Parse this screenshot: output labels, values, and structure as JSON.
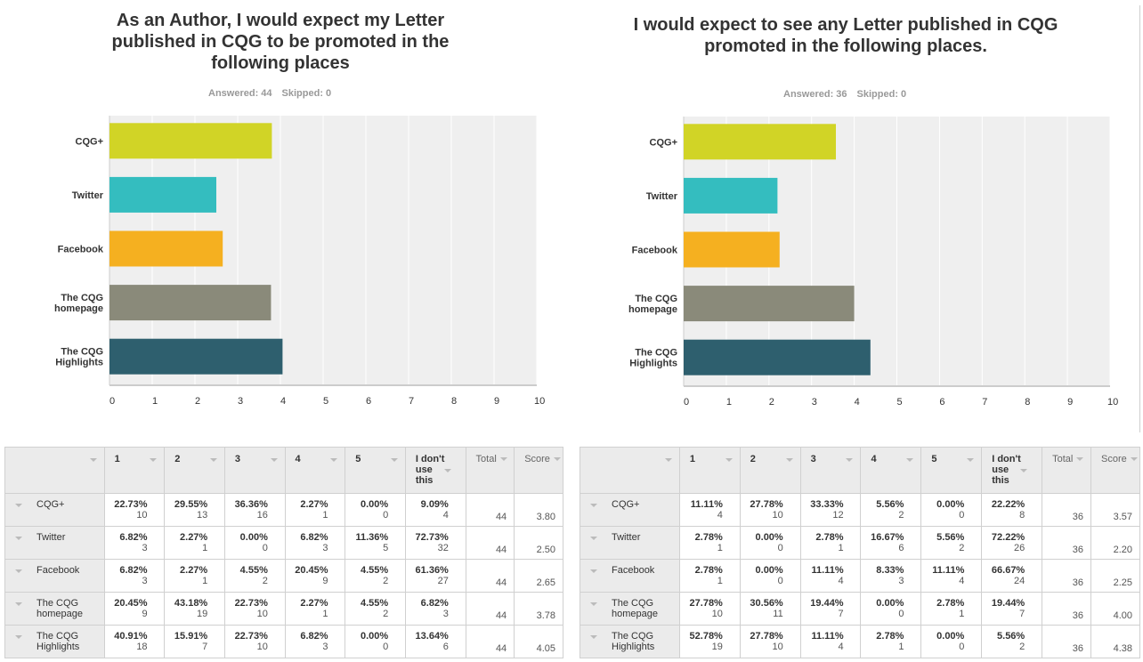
{
  "colors": {
    "series": [
      "#d1d426",
      "#34bdbf",
      "#f5b020",
      "#8a8a7a",
      "#2e5f6e"
    ],
    "plot_bg": "#efefef",
    "grid": "#ffffff",
    "axis": "#cccccc"
  },
  "panels": [
    {
      "title": "As an Author, I would expect my Letter published in CQG to be promoted in the following places",
      "answered_label": "Answered: 44",
      "skipped_label": "Skipped: 0",
      "table": {
        "headers": [
          "",
          "1",
          "2",
          "3",
          "4",
          "5",
          "I don't use this",
          "Total",
          "Score"
        ],
        "rows": [
          {
            "label": "CQG+",
            "cells": [
              [
                "22.73%",
                "10"
              ],
              [
                "29.55%",
                "13"
              ],
              [
                "36.36%",
                "16"
              ],
              [
                "2.27%",
                "1"
              ],
              [
                "0.00%",
                "0"
              ],
              [
                "9.09%",
                "4"
              ]
            ],
            "total": "44",
            "score": "3.80"
          },
          {
            "label": "Twitter",
            "cells": [
              [
                "6.82%",
                "3"
              ],
              [
                "2.27%",
                "1"
              ],
              [
                "0.00%",
                "0"
              ],
              [
                "6.82%",
                "3"
              ],
              [
                "11.36%",
                "5"
              ],
              [
                "72.73%",
                "32"
              ]
            ],
            "total": "44",
            "score": "2.50"
          },
          {
            "label": "Facebook",
            "cells": [
              [
                "6.82%",
                "3"
              ],
              [
                "2.27%",
                "1"
              ],
              [
                "4.55%",
                "2"
              ],
              [
                "20.45%",
                "9"
              ],
              [
                "4.55%",
                "2"
              ],
              [
                "61.36%",
                "27"
              ]
            ],
            "total": "44",
            "score": "2.65"
          },
          {
            "label": "The CQG homepage",
            "cells": [
              [
                "20.45%",
                "9"
              ],
              [
                "43.18%",
                "19"
              ],
              [
                "22.73%",
                "10"
              ],
              [
                "2.27%",
                "1"
              ],
              [
                "4.55%",
                "2"
              ],
              [
                "6.82%",
                "3"
              ]
            ],
            "total": "44",
            "score": "3.78"
          },
          {
            "label": "The CQG Highlights",
            "cells": [
              [
                "40.91%",
                "18"
              ],
              [
                "15.91%",
                "7"
              ],
              [
                "22.73%",
                "10"
              ],
              [
                "6.82%",
                "3"
              ],
              [
                "0.00%",
                "0"
              ],
              [
                "13.64%",
                "6"
              ]
            ],
            "total": "44",
            "score": "4.05"
          }
        ]
      }
    },
    {
      "title": "I would expect to see any Letter published in CQG promoted in the following places.",
      "answered_label": "Answered: 36",
      "skipped_label": "Skipped: 0",
      "table": {
        "headers": [
          "",
          "1",
          "2",
          "3",
          "4",
          "5",
          "I don't use this",
          "Total",
          "Score"
        ],
        "rows": [
          {
            "label": "CQG+",
            "cells": [
              [
                "11.11%",
                "4"
              ],
              [
                "27.78%",
                "10"
              ],
              [
                "33.33%",
                "12"
              ],
              [
                "5.56%",
                "2"
              ],
              [
                "0.00%",
                "0"
              ],
              [
                "22.22%",
                "8"
              ]
            ],
            "total": "36",
            "score": "3.57"
          },
          {
            "label": "Twitter",
            "cells": [
              [
                "2.78%",
                "1"
              ],
              [
                "0.00%",
                "0"
              ],
              [
                "2.78%",
                "1"
              ],
              [
                "16.67%",
                "6"
              ],
              [
                "5.56%",
                "2"
              ],
              [
                "72.22%",
                "26"
              ]
            ],
            "total": "36",
            "score": "2.20"
          },
          {
            "label": "Facebook",
            "cells": [
              [
                "2.78%",
                "1"
              ],
              [
                "0.00%",
                "0"
              ],
              [
                "11.11%",
                "4"
              ],
              [
                "8.33%",
                "3"
              ],
              [
                "11.11%",
                "4"
              ],
              [
                "66.67%",
                "24"
              ]
            ],
            "total": "36",
            "score": "2.25"
          },
          {
            "label": "The CQG homepage",
            "cells": [
              [
                "27.78%",
                "10"
              ],
              [
                "30.56%",
                "11"
              ],
              [
                "19.44%",
                "7"
              ],
              [
                "0.00%",
                "0"
              ],
              [
                "2.78%",
                "1"
              ],
              [
                "19.44%",
                "7"
              ]
            ],
            "total": "36",
            "score": "4.00"
          },
          {
            "label": "The CQG Highlights",
            "cells": [
              [
                "52.78%",
                "19"
              ],
              [
                "27.78%",
                "10"
              ],
              [
                "11.11%",
                "4"
              ],
              [
                "2.78%",
                "1"
              ],
              [
                "0.00%",
                "0"
              ],
              [
                "5.56%",
                "2"
              ]
            ],
            "total": "36",
            "score": "4.38"
          }
        ]
      }
    }
  ],
  "chart_data": [
    {
      "type": "bar",
      "orientation": "horizontal",
      "title": "As an Author, I would expect my Letter published in CQG to be promoted in the following places",
      "categories": [
        "CQG+",
        "Twitter",
        "Facebook",
        "The CQG homepage",
        "The CQG Highlights"
      ],
      "category_lines": [
        [
          "CQG+"
        ],
        [
          "Twitter"
        ],
        [
          "Facebook"
        ],
        [
          "The CQG",
          "homepage"
        ],
        [
          "The CQG",
          "Highlights"
        ]
      ],
      "values": [
        3.8,
        2.5,
        2.65,
        3.78,
        4.05
      ],
      "xlabel": "",
      "ylabel": "",
      "xlim": [
        0,
        10
      ],
      "xticks": [
        "0",
        "1",
        "2",
        "3",
        "4",
        "5",
        "6",
        "7",
        "8",
        "9",
        "10"
      ],
      "grid": true,
      "legend": "none"
    },
    {
      "type": "bar",
      "orientation": "horizontal",
      "title": "I would expect to see any Letter published in CQG promoted in the following places.",
      "categories": [
        "CQG+",
        "Twitter",
        "Facebook",
        "The CQG homepage",
        "The CQG Highlights"
      ],
      "category_lines": [
        [
          "CQG+"
        ],
        [
          "Twitter"
        ],
        [
          "Facebook"
        ],
        [
          "The CQG",
          "homepage"
        ],
        [
          "The CQG",
          "Highlights"
        ]
      ],
      "values": [
        3.57,
        2.2,
        2.25,
        4.0,
        4.38
      ],
      "xlabel": "",
      "ylabel": "",
      "xlim": [
        0,
        10
      ],
      "xticks": [
        "0",
        "1",
        "2",
        "3",
        "4",
        "5",
        "6",
        "7",
        "8",
        "9",
        "10"
      ],
      "grid": true,
      "legend": "none"
    }
  ]
}
